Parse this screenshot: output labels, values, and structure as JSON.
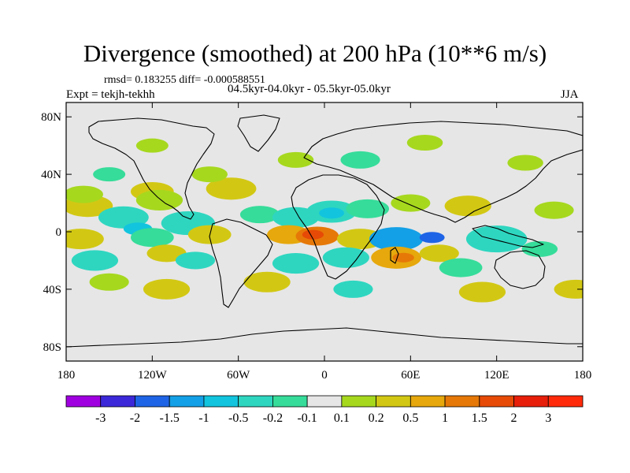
{
  "chart_data": {
    "type": "heatmap",
    "title": "Divergence (smoothed) at 200 hPa (10**6 m/s)",
    "stats": "rmsd= 0.183255 diff= -0.000588551",
    "experiment": "Expt = tekjh-tekhh",
    "period": "04.5kyr-04.0kyr - 05.5kyr-05.0kyr",
    "season": "JJA",
    "x_range": [
      -180,
      180
    ],
    "y_range": [
      -90,
      90
    ],
    "x_ticks": [
      {
        "value": -180,
        "label": "180"
      },
      {
        "value": -120,
        "label": "120W"
      },
      {
        "value": -60,
        "label": "60W"
      },
      {
        "value": 0,
        "label": "0"
      },
      {
        "value": 60,
        "label": "60E"
      },
      {
        "value": 120,
        "label": "120E"
      },
      {
        "value": 180,
        "label": "180"
      }
    ],
    "y_ticks": [
      {
        "value": 80,
        "label": "80N"
      },
      {
        "value": 40,
        "label": "40N"
      },
      {
        "value": 0,
        "label": "0"
      },
      {
        "value": -40,
        "label": "40S"
      },
      {
        "value": -80,
        "label": "80S"
      }
    ],
    "contour_levels": [
      "-3",
      "-2",
      "-1.5",
      "-1",
      "-0.5",
      "-0.2",
      "-0.1",
      "0.1",
      "0.2",
      "0.5",
      "1",
      "1.5",
      "2",
      "3"
    ],
    "level_colors": [
      "#a000e0",
      "#3c28d8",
      "#1e64e6",
      "#14a0e6",
      "#12c4de",
      "#2ed6c0",
      "#36dc9a",
      "#e6e6e6",
      "#a6d81e",
      "#d2c814",
      "#e6a80c",
      "#e67808",
      "#e64a06",
      "#e61e0a",
      "#ff2a0a"
    ],
    "anomalies": [
      {
        "lon": -165,
        "lat": 18,
        "bin": 9,
        "size": 14
      },
      {
        "lon": -168,
        "lat": 26,
        "bin": 8,
        "size": 11
      },
      {
        "lon": -120,
        "lat": 28,
        "bin": 9,
        "size": 12
      },
      {
        "lon": -115,
        "lat": 22,
        "bin": 8,
        "size": 13
      },
      {
        "lon": -65,
        "lat": 30,
        "bin": 9,
        "size": 14
      },
      {
        "lon": -80,
        "lat": 40,
        "bin": 8,
        "size": 10
      },
      {
        "lon": -140,
        "lat": 10,
        "bin": 5,
        "size": 14
      },
      {
        "lon": -95,
        "lat": 6,
        "bin": 5,
        "size": 15
      },
      {
        "lon": -130,
        "lat": 2,
        "bin": 4,
        "size": 8
      },
      {
        "lon": -45,
        "lat": 12,
        "bin": 6,
        "size": 11
      },
      {
        "lon": -20,
        "lat": 10,
        "bin": 5,
        "size": 13
      },
      {
        "lon": 5,
        "lat": 14,
        "bin": 5,
        "size": 14
      },
      {
        "lon": 5,
        "lat": 13,
        "bin": 4,
        "size": 7
      },
      {
        "lon": 30,
        "lat": 16,
        "bin": 6,
        "size": 12
      },
      {
        "lon": 60,
        "lat": 20,
        "bin": 8,
        "size": 11
      },
      {
        "lon": 100,
        "lat": 18,
        "bin": 9,
        "size": 13
      },
      {
        "lon": 160,
        "lat": 15,
        "bin": 8,
        "size": 11
      },
      {
        "lon": -170,
        "lat": -5,
        "bin": 9,
        "size": 13
      },
      {
        "lon": -120,
        "lat": -4,
        "bin": 6,
        "size": 12
      },
      {
        "lon": -80,
        "lat": -2,
        "bin": 9,
        "size": 12
      },
      {
        "lon": -25,
        "lat": -2,
        "bin": 10,
        "size": 12
      },
      {
        "lon": -5,
        "lat": -3,
        "bin": 11,
        "size": 12
      },
      {
        "lon": -8,
        "lat": -2,
        "bin": 12,
        "size": 6
      },
      {
        "lon": 25,
        "lat": -5,
        "bin": 9,
        "size": 13
      },
      {
        "lon": 50,
        "lat": -5,
        "bin": 3,
        "size": 15
      },
      {
        "lon": 75,
        "lat": -4,
        "bin": 2,
        "size": 7
      },
      {
        "lon": 120,
        "lat": -5,
        "bin": 5,
        "size": 17
      },
      {
        "lon": 150,
        "lat": -12,
        "bin": 6,
        "size": 10
      },
      {
        "lon": -160,
        "lat": -20,
        "bin": 5,
        "size": 13
      },
      {
        "lon": -110,
        "lat": -15,
        "bin": 9,
        "size": 11
      },
      {
        "lon": -90,
        "lat": -20,
        "bin": 5,
        "size": 11
      },
      {
        "lon": -20,
        "lat": -22,
        "bin": 5,
        "size": 13
      },
      {
        "lon": 15,
        "lat": -18,
        "bin": 5,
        "size": 13
      },
      {
        "lon": 50,
        "lat": -18,
        "bin": 10,
        "size": 14
      },
      {
        "lon": 55,
        "lat": -18,
        "bin": 11,
        "size": 6
      },
      {
        "lon": 80,
        "lat": -15,
        "bin": 9,
        "size": 11
      },
      {
        "lon": 95,
        "lat": -25,
        "bin": 6,
        "size": 12
      },
      {
        "lon": -150,
        "lat": -35,
        "bin": 8,
        "size": 11
      },
      {
        "lon": -110,
        "lat": -40,
        "bin": 9,
        "size": 13
      },
      {
        "lon": -40,
        "lat": -35,
        "bin": 9,
        "size": 13
      },
      {
        "lon": 20,
        "lat": -40,
        "bin": 5,
        "size": 11
      },
      {
        "lon": 110,
        "lat": -42,
        "bin": 9,
        "size": 13
      },
      {
        "lon": 175,
        "lat": -40,
        "bin": 9,
        "size": 12
      },
      {
        "lon": 25,
        "lat": 50,
        "bin": 6,
        "size": 11
      },
      {
        "lon": -20,
        "lat": 50,
        "bin": 8,
        "size": 10
      },
      {
        "lon": 70,
        "lat": 62,
        "bin": 8,
        "size": 10
      },
      {
        "lon": 140,
        "lat": 48,
        "bin": 8,
        "size": 10
      },
      {
        "lon": -120,
        "lat": 60,
        "bin": 8,
        "size": 9
      },
      {
        "lon": -150,
        "lat": 40,
        "bin": 6,
        "size": 9
      }
    ]
  }
}
